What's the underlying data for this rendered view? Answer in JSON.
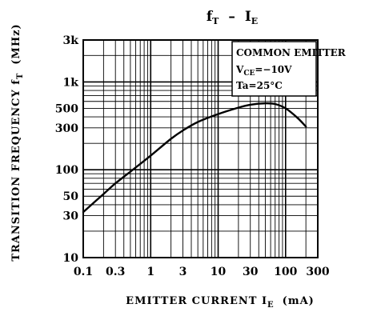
{
  "chart_data": {
    "type": "line",
    "title": {
      "main": "f",
      "main_sub": "T",
      "sep": "–",
      "rhs": "I",
      "rhs_sub": "E"
    },
    "xlabel": {
      "main": "EMITTER CURRENT I",
      "sub": "E",
      "unit": "(mA)"
    },
    "ylabel": {
      "main": "TRANSITION FREQUENCY f",
      "sub": "T",
      "unit": "(MHz)"
    },
    "xscale": "log",
    "yscale": "log",
    "xlim": [
      0.1,
      300
    ],
    "ylim": [
      10,
      3000
    ],
    "x_ticks": [
      {
        "v": 0.1,
        "label": "0.1"
      },
      {
        "v": 0.3,
        "label": "0.3"
      },
      {
        "v": 1,
        "label": "1"
      },
      {
        "v": 3,
        "label": "3"
      },
      {
        "v": 10,
        "label": "10"
      },
      {
        "v": 30,
        "label": "30"
      },
      {
        "v": 100,
        "label": "100"
      },
      {
        "v": 300,
        "label": "300"
      }
    ],
    "y_ticks": [
      {
        "v": 10,
        "label": "10"
      },
      {
        "v": 30,
        "label": "30"
      },
      {
        "v": 50,
        "label": "50"
      },
      {
        "v": 100,
        "label": "100"
      },
      {
        "v": 300,
        "label": "300"
      },
      {
        "v": 500,
        "label": "500"
      },
      {
        "v": 1000,
        "label": "1k"
      },
      {
        "v": 3000,
        "label": "3k"
      }
    ],
    "grid": true,
    "conditions": {
      "line1": "COMMON EMITTER",
      "line2_main": "V",
      "line2_sub": "CE",
      "line2_value": "=−10V",
      "line3": "Ta=25°C",
      "placement": "top-right"
    },
    "series": [
      {
        "x": [
          0.1,
          0.2,
          0.3,
          0.5,
          1,
          2,
          3,
          5,
          10,
          20,
          30,
          50,
          70,
          100,
          150,
          200
        ],
        "y": [
          33,
          53,
          70,
          95,
          145,
          225,
          280,
          350,
          430,
          510,
          550,
          570,
          560,
          500,
          390,
          310
        ]
      }
    ]
  }
}
